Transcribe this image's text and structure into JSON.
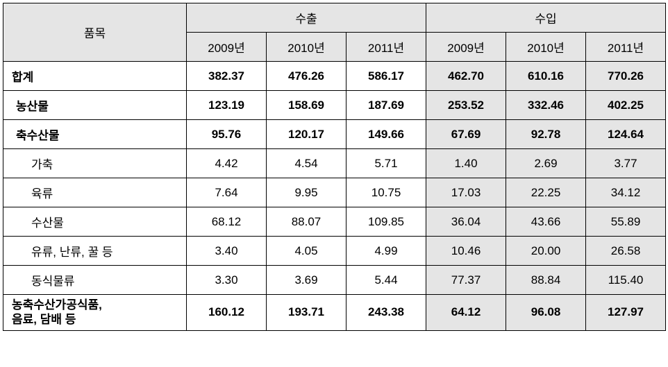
{
  "table": {
    "type": "table",
    "background_color": "#ffffff",
    "shade_color": "#e5e5e5",
    "border_color": "#000000",
    "font_family": "Malgun Gothic",
    "header_fontsize": 17,
    "cell_fontsize": 17,
    "columns": {
      "label_header": "품목",
      "groups": [
        {
          "title": "수출",
          "years": [
            "2009년",
            "2010년",
            "2011년"
          ]
        },
        {
          "title": "수입",
          "years": [
            "2009년",
            "2010년",
            "2011년"
          ]
        }
      ]
    },
    "rows": [
      {
        "label": "합계",
        "bold": true,
        "indent": 0,
        "export": [
          "382.37",
          "476.26",
          "586.17"
        ],
        "import": [
          "462.70",
          "610.16",
          "770.26"
        ]
      },
      {
        "label": "농산물",
        "bold": true,
        "indent": 1,
        "export": [
          "123.19",
          "158.69",
          "187.69"
        ],
        "import": [
          "253.52",
          "332.46",
          "402.25"
        ]
      },
      {
        "label": "축수산물",
        "bold": true,
        "indent": 1,
        "export": [
          "95.76",
          "120.17",
          "149.66"
        ],
        "import": [
          "67.69",
          "92.78",
          "124.64"
        ]
      },
      {
        "label": "가축",
        "bold": false,
        "indent": 2,
        "export": [
          "4.42",
          "4.54",
          "5.71"
        ],
        "import": [
          "1.40",
          "2.69",
          "3.77"
        ]
      },
      {
        "label": "육류",
        "bold": false,
        "indent": 2,
        "export": [
          "7.64",
          "9.95",
          "10.75"
        ],
        "import": [
          "17.03",
          "22.25",
          "34.12"
        ]
      },
      {
        "label": "수산물",
        "bold": false,
        "indent": 2,
        "export": [
          "68.12",
          "88.07",
          "109.85"
        ],
        "import": [
          "36.04",
          "43.66",
          "55.89"
        ]
      },
      {
        "label": "유류, 난류, 꿀 등",
        "bold": false,
        "indent": 2,
        "export": [
          "3.40",
          "4.05",
          "4.99"
        ],
        "import": [
          "10.46",
          "20.00",
          "26.58"
        ]
      },
      {
        "label": "동식물류",
        "bold": false,
        "indent": 2,
        "export": [
          "3.30",
          "3.69",
          "5.44"
        ],
        "import": [
          "77.37",
          "88.84",
          "115.40"
        ]
      },
      {
        "label": "농축수산가공식품,\n음료, 담배 등",
        "bold": true,
        "indent": 0,
        "last": true,
        "export": [
          "160.12",
          "193.71",
          "243.38"
        ],
        "import": [
          "64.12",
          "96.08",
          "127.97"
        ]
      }
    ]
  }
}
